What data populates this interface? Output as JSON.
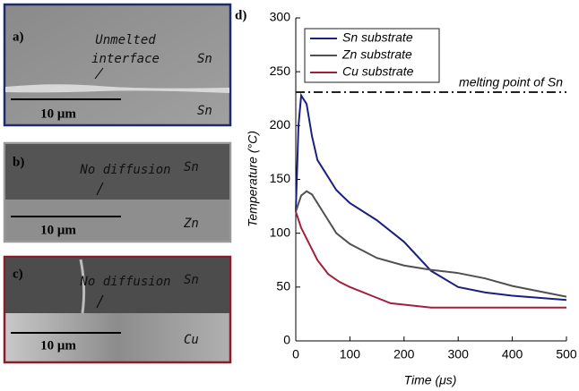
{
  "panels": [
    {
      "label": "a)",
      "annotation": [
        "Unmelted",
        "interface"
      ],
      "top": "Sn",
      "bottom": "Sn",
      "scale": "10 μm"
    },
    {
      "label": "b)",
      "annotation": [
        "No diffusion"
      ],
      "top": "Sn",
      "bottom": "Zn",
      "scale": "10 μm"
    },
    {
      "label": "c)",
      "annotation": [
        "No diffusion"
      ],
      "top": "Sn",
      "bottom": "Cu",
      "scale": "10 μm"
    }
  ],
  "chart_data": {
    "type": "line",
    "label": "d)",
    "xlabel": "Time (μs)",
    "ylabel": "Temperature (°C)",
    "xlim": [
      0,
      500
    ],
    "ylim": [
      0,
      300
    ],
    "xticks": [
      0,
      100,
      200,
      300,
      400,
      500
    ],
    "yticks": [
      0,
      50,
      100,
      150,
      200,
      250,
      300
    ],
    "melting_point": {
      "value": 231,
      "label": "melting point of Sn"
    },
    "series": [
      {
        "name": "Sn substrate",
        "color": "#1b1f7e",
        "x": [
          0,
          5,
          10,
          20,
          30,
          40,
          50,
          75,
          100,
          150,
          200,
          250,
          300,
          350,
          400,
          450,
          500
        ],
        "values": [
          120,
          200,
          228,
          220,
          190,
          168,
          160,
          140,
          128,
          112,
          92,
          65,
          50,
          45,
          42,
          40,
          38
        ]
      },
      {
        "name": "Zn substrate",
        "color": "#505050",
        "x": [
          0,
          10,
          20,
          30,
          50,
          75,
          100,
          150,
          200,
          250,
          300,
          350,
          400,
          450,
          500
        ],
        "values": [
          120,
          135,
          139,
          136,
          120,
          100,
          90,
          77,
          70,
          66,
          63,
          58,
          51,
          46,
          41
        ]
      },
      {
        "name": "Cu substrate",
        "color": "#a3203c",
        "x": [
          0,
          10,
          20,
          40,
          60,
          80,
          100,
          150,
          175,
          250,
          300,
          500
        ],
        "values": [
          120,
          105,
          95,
          75,
          62,
          55,
          50,
          40,
          35,
          31,
          31,
          31
        ]
      }
    ]
  }
}
